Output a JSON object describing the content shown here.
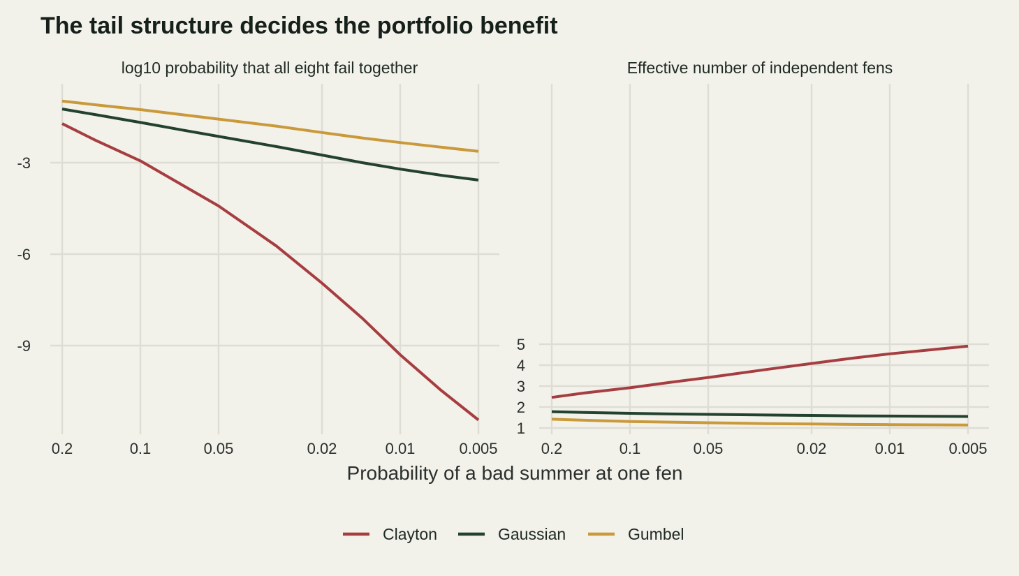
{
  "title": "The tail structure decides the portfolio benefit",
  "xlabel": "Probability of a bad summer at one fen",
  "legend": [
    "Clayton",
    "Gaussian",
    "Gumbel"
  ],
  "colors": {
    "Clayton": "#a63d40",
    "Gaussian": "#23412f",
    "Gumbel": "#c9993a",
    "background": "#f2f1ea",
    "grid": "#deddd5"
  },
  "chart_data": [
    {
      "type": "line",
      "title": "log10 probability that all eight fail together",
      "x_scale": "log, reversed",
      "x_ticks": [
        "0.2",
        "0.1",
        "0.05",
        "0.02",
        "0.01",
        "0.005"
      ],
      "x_tick_values": [
        0.2,
        0.1,
        0.05,
        0.02,
        0.01,
        0.005
      ],
      "y_ticks": [
        "-3",
        "-6",
        "-9"
      ],
      "y_tick_values": [
        -3,
        -6,
        -9
      ],
      "xlim": [
        0.2,
        0.005
      ],
      "ylim": [
        -11.6,
        -0.7
      ],
      "x": [
        0.2,
        0.15,
        0.1,
        0.07,
        0.05,
        0.03,
        0.02,
        0.014,
        0.01,
        0.007,
        0.005
      ],
      "series": [
        {
          "name": "Clayton",
          "values": [
            -1.72,
            -2.25,
            -2.94,
            -3.7,
            -4.42,
            -5.73,
            -6.95,
            -8.1,
            -9.3,
            -10.45,
            -11.44
          ]
        },
        {
          "name": "Gaussian",
          "values": [
            -1.24,
            -1.42,
            -1.68,
            -1.92,
            -2.14,
            -2.47,
            -2.75,
            -3.0,
            -3.21,
            -3.41,
            -3.57
          ]
        },
        {
          "name": "Gumbel",
          "values": [
            -0.98,
            -1.1,
            -1.26,
            -1.42,
            -1.57,
            -1.8,
            -2.01,
            -2.19,
            -2.34,
            -2.49,
            -2.63
          ]
        }
      ],
      "grid": true
    },
    {
      "type": "line",
      "title": "Effective number of independent fens",
      "x_scale": "log, reversed",
      "x_ticks": [
        "0.2",
        "0.1",
        "0.05",
        "0.02",
        "0.01",
        "0.005"
      ],
      "x_tick_values": [
        0.2,
        0.1,
        0.05,
        0.02,
        0.01,
        0.005
      ],
      "y_ticks": [
        "1",
        "2",
        "3",
        "4",
        "5"
      ],
      "y_tick_values": [
        1,
        2,
        3,
        4,
        5
      ],
      "xlim": [
        0.2,
        0.005
      ],
      "ylim": [
        1,
        5
      ],
      "x": [
        0.2,
        0.15,
        0.1,
        0.07,
        0.05,
        0.03,
        0.02,
        0.014,
        0.01,
        0.007,
        0.005
      ],
      "series": [
        {
          "name": "Clayton",
          "values": [
            2.46,
            2.67,
            2.92,
            3.18,
            3.41,
            3.79,
            4.08,
            4.33,
            4.54,
            4.73,
            4.91
          ]
        },
        {
          "name": "Gaussian",
          "values": [
            1.78,
            1.74,
            1.7,
            1.67,
            1.65,
            1.62,
            1.6,
            1.58,
            1.57,
            1.56,
            1.55
          ]
        },
        {
          "name": "Gumbel",
          "values": [
            1.42,
            1.37,
            1.31,
            1.28,
            1.25,
            1.21,
            1.19,
            1.17,
            1.16,
            1.15,
            1.14
          ]
        }
      ],
      "grid": true
    }
  ]
}
